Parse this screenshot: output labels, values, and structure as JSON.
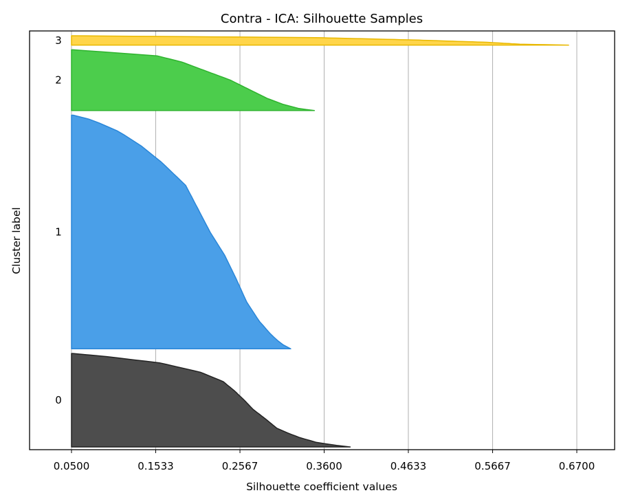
{
  "chart_data": {
    "type": "area",
    "title": "Contra - ICA: Silhouette Samples",
    "xlabel": "Silhouette coefficient values",
    "ylabel": "Cluster label",
    "xlim": [
      0.0,
      0.73
    ],
    "x_ticks": [
      "0.0500",
      "0.1533",
      "0.2567",
      "0.3600",
      "0.4633",
      "0.5667",
      "0.6700"
    ],
    "x_tick_values": [
      0.05,
      0.1533,
      0.2567,
      0.36,
      0.4633,
      0.5667,
      0.67
    ],
    "grid": "vertical",
    "y_range": [
      0,
      440
    ],
    "clusters": [
      {
        "label": "0",
        "color": "#4d4d4d",
        "edge_color": "#222222",
        "y_start": 0,
        "y_end": 100,
        "profile": [
          [
            0.0,
            0.392
          ],
          [
            0.02,
            0.372
          ],
          [
            0.05,
            0.35
          ],
          [
            0.1,
            0.33
          ],
          [
            0.15,
            0.315
          ],
          [
            0.2,
            0.302
          ],
          [
            0.3,
            0.288
          ],
          [
            0.4,
            0.273
          ],
          [
            0.5,
            0.262
          ],
          [
            0.6,
            0.25
          ],
          [
            0.7,
            0.236
          ],
          [
            0.8,
            0.208
          ],
          [
            0.9,
            0.158
          ],
          [
            0.97,
            0.09
          ],
          [
            1.0,
            0.052
          ]
        ]
      },
      {
        "label": "1",
        "color": "#4a9fe8",
        "edge_color": "#2a86d8",
        "y_start": 105,
        "y_end": 355,
        "profile": [
          [
            0.0,
            0.319
          ],
          [
            0.02,
            0.308
          ],
          [
            0.06,
            0.295
          ],
          [
            0.12,
            0.28
          ],
          [
            0.2,
            0.265
          ],
          [
            0.3,
            0.252
          ],
          [
            0.4,
            0.238
          ],
          [
            0.5,
            0.22
          ],
          [
            0.6,
            0.205
          ],
          [
            0.7,
            0.19
          ],
          [
            0.8,
            0.16
          ],
          [
            0.87,
            0.135
          ],
          [
            0.93,
            0.108
          ],
          [
            0.98,
            0.075
          ],
          [
            1.0,
            0.052
          ]
        ]
      },
      {
        "label": "2",
        "color": "#4ccd4c",
        "edge_color": "#2eb32e",
        "y_start": 360,
        "y_end": 425,
        "profile": [
          [
            0.0,
            0.348
          ],
          [
            0.03,
            0.33
          ],
          [
            0.1,
            0.31
          ],
          [
            0.2,
            0.29
          ],
          [
            0.3,
            0.275
          ],
          [
            0.4,
            0.26
          ],
          [
            0.5,
            0.245
          ],
          [
            0.6,
            0.225
          ],
          [
            0.7,
            0.205
          ],
          [
            0.8,
            0.185
          ],
          [
            0.9,
            0.155
          ],
          [
            1.0,
            0.052
          ]
        ]
      },
      {
        "label": "3",
        "color": "#ffd54a",
        "edge_color": "#e8b800",
        "y_start": 430,
        "y_end": 440,
        "profile": [
          [
            0.0,
            0.66
          ],
          [
            0.1,
            0.6
          ],
          [
            0.3,
            0.56
          ],
          [
            0.55,
            0.47
          ],
          [
            0.8,
            0.35
          ],
          [
            1.0,
            0.052
          ]
        ]
      }
    ]
  }
}
